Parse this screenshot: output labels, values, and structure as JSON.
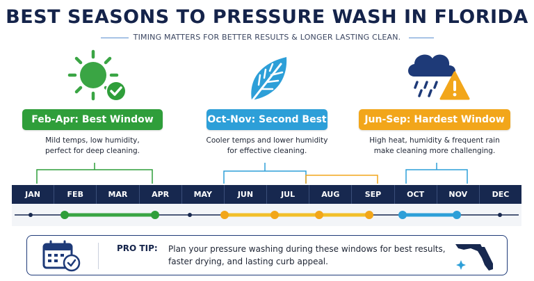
{
  "header": {
    "title": "BEST SEASONS TO PRESSURE WASH IN FLORIDA",
    "subtitle": "TIMING MATTERS FOR BETTER RESULTS & LONGER LASTING CLEAN."
  },
  "seasons": [
    {
      "badge": "Feb-Apr: Best Window",
      "description_line1": "Mild temps, low humidity,",
      "description_line2": "perfect for deep cleaning.",
      "color": "#2f9e3a",
      "icon": "sun-check-icon"
    },
    {
      "badge": "Oct-Nov: Second Best",
      "description_line1": "Cooler temps and lower humidity",
      "description_line2": "for effective cleaning.",
      "color": "#2d9fd8",
      "icon": "leaf-icon"
    },
    {
      "badge": "Jun-Sep: Hardest Window",
      "description_line1": "High heat, humidity & frequent rain",
      "description_line2": "make cleaning more challenging.",
      "color": "#f2a61a",
      "icon": "rain-cloud-warning-icon"
    }
  ],
  "timeline": {
    "months": [
      "JAN",
      "FEB",
      "MAR",
      "APR",
      "MAY",
      "JUN",
      "JUL",
      "AUG",
      "SEP",
      "OCT",
      "NOV",
      "DEC"
    ],
    "track_color": "#17284f"
  },
  "tip": {
    "label": "PRO TIP:",
    "line1": "Plan your pressure washing during these windows for best results,",
    "line2": "faster drying, and lasting curb appeal.",
    "calendar_icon": "calendar-check-icon",
    "map_icon": "florida-map-icon"
  },
  "colors": {
    "navy": "#14234a",
    "green": "#2f9e3a",
    "blue": "#2d9fd8",
    "orange": "#f2a61a",
    "warning": "#f2a61a"
  }
}
